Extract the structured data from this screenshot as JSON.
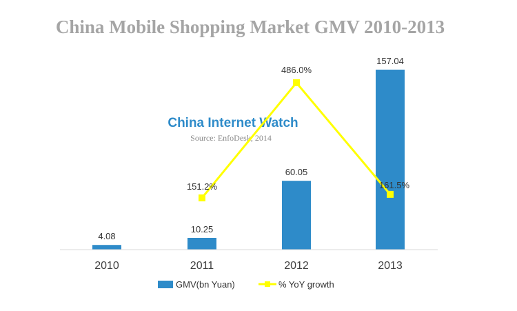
{
  "chart_data": {
    "type": "bar",
    "title": "China Mobile Shopping Market GMV 2010-2013",
    "categories": [
      "2010",
      "2011",
      "2012",
      "2013"
    ],
    "series": [
      {
        "name": "GMV(bn Yuan)",
        "type": "bar",
        "values": [
          4.08,
          10.25,
          60.05,
          157.04
        ],
        "labels": [
          "4.08",
          "10.25",
          "60.05",
          "157.04"
        ],
        "color": "#2e8bc9"
      },
      {
        "name": "% YoY growth",
        "type": "line",
        "values": [
          null,
          151.2,
          486.0,
          161.5
        ],
        "labels": [
          "",
          "151.2%",
          "486.0%",
          "161.5%"
        ],
        "color": "#ffff00"
      }
    ],
    "watermark": "China Internet  Watch",
    "source": "Source: EnfoDesk, 2014",
    "legend_position": "bottom",
    "grid": false
  }
}
